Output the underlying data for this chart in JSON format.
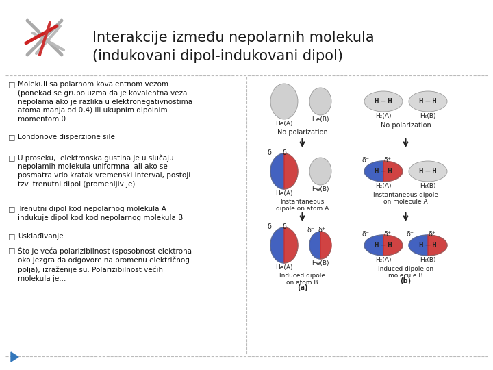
{
  "title_line1": "Interakcije između nepolarnih molekula",
  "title_line2": "(indukovani dipol-indukovani dipol)",
  "title_fontsize": 15,
  "background_color": "#ffffff",
  "bullet_color": "#111111",
  "bullet_fontsize": 7.5,
  "bullets": [
    "Molekuli sa polarnom kovalentnom vezom\n(ponekad se grubo uzma da je kovalentna veza\nnepolama ako je razlika u elektronegativnostima\natoma manja od 0,4) ili ukupnim dipolnim\nmomentom 0",
    "Londonove disperzione sile",
    "U proseku,  elektronska gustina je u slučaju\nnepolamih molekula uniformna  ali ako se\nposmatra vrlo kratak vremenski interval, postoji\ntzv. trenutni dipol (promenljiv je)",
    "Trenutni dipol kod nepolarnog molekula A\nindukuje dipol kod kod nepolarnog molekula B",
    "Usklađivanje",
    "Što je veća polarizibilnost (sposobnost elektrona\noko jezgra da odgovore na promenu električnog\npolja), izraženije su. Polarizibilnost većih\nmolekula je..."
  ],
  "dash_color": "#bbbbbb",
  "triangle_color": "#3377bb"
}
